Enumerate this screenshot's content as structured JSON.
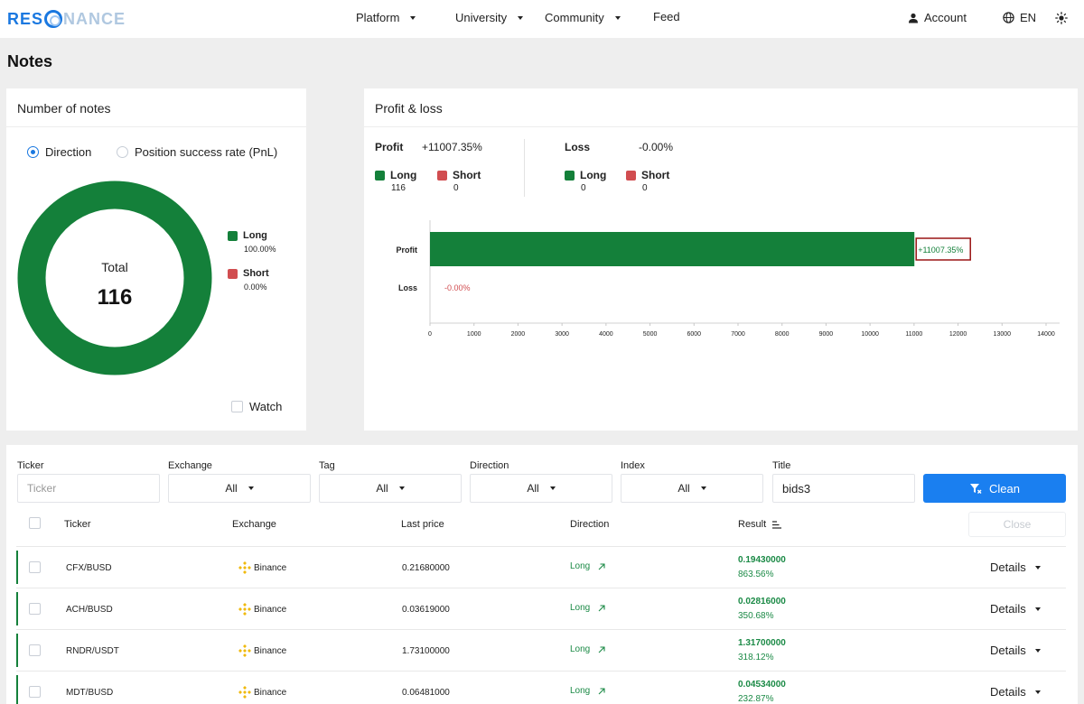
{
  "header": {
    "logo_a": "RES",
    "logo_b": "NANCE",
    "nav": [
      "Platform",
      "University",
      "Community",
      "Feed"
    ],
    "account": "Account",
    "language": "EN"
  },
  "page_title": "Notes",
  "notes_card": {
    "title": "Number of notes",
    "radio_direction": "Direction",
    "radio_pnl": "Position success rate (PnL)",
    "total_label": "Total",
    "total_value": "116",
    "legend": [
      {
        "name": "Long",
        "pct": "100.00%",
        "color": "#14803a"
      },
      {
        "name": "Short",
        "pct": "0.00%",
        "color": "#d14d50"
      }
    ],
    "donut_fraction_long": 1.0,
    "watch_label": "Watch"
  },
  "pnl_card": {
    "title": "Profit & loss",
    "profit_label": "Profit",
    "profit_value": "+11007.35%",
    "loss_label": "Loss",
    "loss_value": "-0.00%",
    "profit_long_label": "Long",
    "profit_long_count": "116",
    "profit_short_label": "Short",
    "profit_short_count": "0",
    "loss_long_label": "Long",
    "loss_long_count": "0",
    "loss_short_label": "Short",
    "loss_short_count": "0"
  },
  "chart_data": {
    "type": "bar",
    "orientation": "horizontal",
    "categories": [
      "Profit",
      "Loss"
    ],
    "values": [
      11007.35,
      0
    ],
    "data_labels": [
      "+11007.35%",
      "-0.00%"
    ],
    "xlim": [
      0,
      14000
    ],
    "x_ticks": [
      "0",
      "1000",
      "2000",
      "3000",
      "4000",
      "5000",
      "6000",
      "7000",
      "8000",
      "9000",
      "10000",
      "11000",
      "12000",
      "13000",
      "14000"
    ],
    "colors": [
      "#14803a",
      "#d14d50"
    ],
    "grid": false
  },
  "filters": {
    "ticker_label": "Ticker",
    "ticker_placeholder": "Ticker",
    "exchange_label": "Exchange",
    "exchange_value": "All",
    "tag_label": "Tag",
    "tag_value": "All",
    "direction_label": "Direction",
    "direction_value": "All",
    "index_label": "Index",
    "index_value": "All",
    "title_label": "Title",
    "title_value": "bids3",
    "clean_button": "Clean",
    "close_button": "Close"
  },
  "table": {
    "headers": [
      "Ticker",
      "Exchange",
      "Last price",
      "Direction",
      "Result"
    ],
    "rows": [
      {
        "ticker": "CFX/BUSD",
        "exchange": "Binance",
        "price": "0.21680000",
        "direction": "Long",
        "result": "0.19430000",
        "result_pct": "863.56%",
        "details": "Details"
      },
      {
        "ticker": "ACH/BUSD",
        "exchange": "Binance",
        "price": "0.03619000",
        "direction": "Long",
        "result": "0.02816000",
        "result_pct": "350.68%",
        "details": "Details"
      },
      {
        "ticker": "RNDR/USDT",
        "exchange": "Binance",
        "price": "1.73100000",
        "direction": "Long",
        "result": "1.31700000",
        "result_pct": "318.12%",
        "details": "Details"
      },
      {
        "ticker": "MDT/BUSD",
        "exchange": "Binance",
        "price": "0.06481000",
        "direction": "Long",
        "result": "0.04534000",
        "result_pct": "232.87%",
        "details": "Details"
      }
    ]
  }
}
